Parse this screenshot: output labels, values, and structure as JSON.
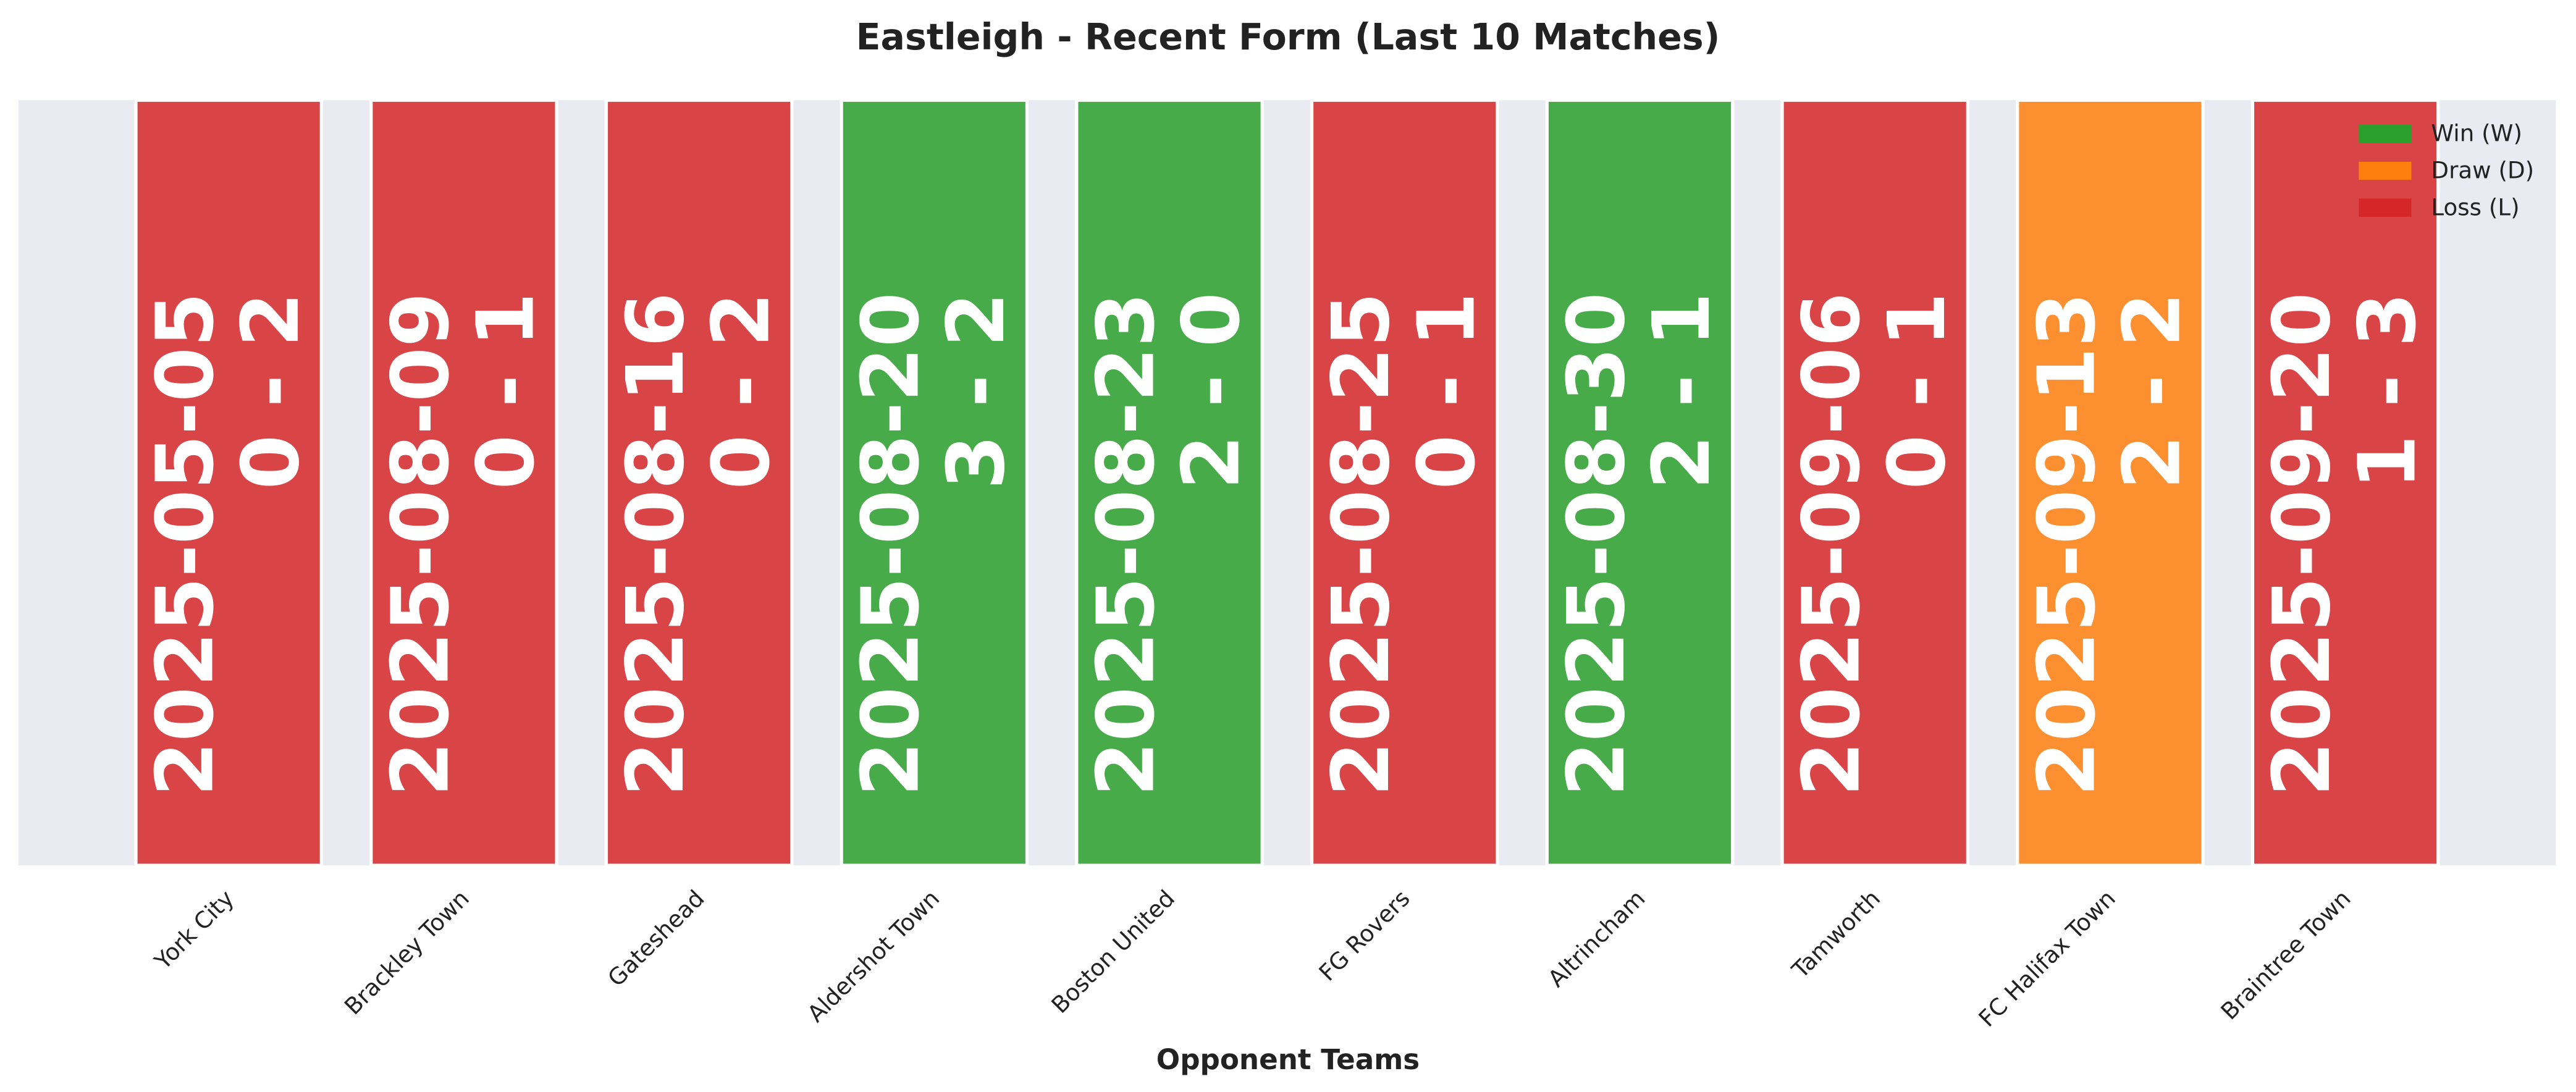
{
  "chart_data": {
    "type": "bar",
    "title": "Eastleigh - Recent Form (Last 10 Matches)",
    "x_label": "Opponent Teams",
    "categories": [
      "York City",
      "Brackley Town",
      "Gateshead",
      "Aldershot Town",
      "Boston United",
      "FG Rovers",
      "Altrincham",
      "Tamworth",
      "FC Halifax Town",
      "Braintree Town"
    ],
    "values": [
      1,
      1,
      1,
      1,
      1,
      1,
      1,
      1,
      1,
      1
    ],
    "ylim": [
      0,
      1
    ],
    "dates": [
      "2025-05-05",
      "2025-08-09",
      "2025-08-16",
      "2025-08-20",
      "2025-08-23",
      "2025-08-25",
      "2025-08-30",
      "2025-09-06",
      "2025-09-13",
      "2025-09-20"
    ],
    "scores": [
      "0 - 2",
      "0 - 1",
      "0 - 2",
      "3 - 2",
      "2 - 0",
      "0 - 1",
      "2 - 1",
      "0 - 1",
      "2 - 2",
      "1 - 3"
    ],
    "results": [
      "L",
      "L",
      "L",
      "W",
      "W",
      "L",
      "W",
      "L",
      "D",
      "L"
    ],
    "legend": [
      {
        "key": "W",
        "name": "Win (W)",
        "color": "#2ca02c"
      },
      {
        "key": "D",
        "name": "Draw (D)",
        "color": "#ff7f0e"
      },
      {
        "key": "L",
        "name": "Loss (L)",
        "color": "#d62728"
      }
    ],
    "legend_position": "upper right"
  }
}
